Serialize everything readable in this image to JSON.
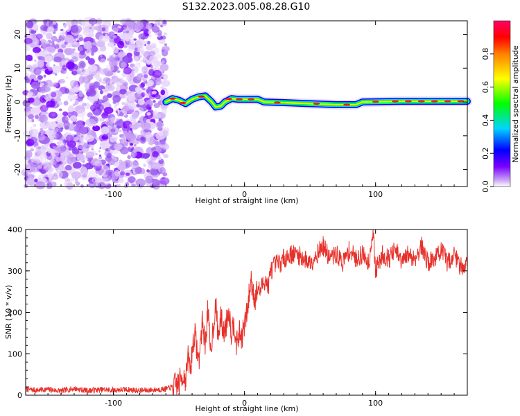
{
  "title": "S132.2023.005.08.28.G10",
  "colors": {
    "snr_line": "#e8302a",
    "spectrogram_background": "#ffffff",
    "colormap": [
      "#ffffff",
      "#c9a0f5",
      "#7a00ff",
      "#0000ff",
      "#00d4ff",
      "#00ff00",
      "#ffff00",
      "#ff8000",
      "#ff0000",
      "#ff0066"
    ]
  },
  "chart_data": [
    {
      "type": "heatmap",
      "xlabel": "Height of straight line (km)",
      "ylabel": "Frequency (Hz)",
      "xlim": [
        -167,
        170
      ],
      "ylim": [
        -25,
        24
      ],
      "xticks": [
        "-100",
        "0",
        "100"
      ],
      "xtick_values": [
        -100,
        0,
        100
      ],
      "yticks": [
        "-20",
        "-10",
        "0",
        "10",
        "20"
      ],
      "ytick_values": [
        -20,
        -10,
        0,
        10,
        20
      ],
      "noise_region_x": [
        -167,
        -60
      ],
      "ridge": [
        {
          "x": -60,
          "f": 0.0
        },
        {
          "x": -55,
          "f": 1.0
        },
        {
          "x": -50,
          "f": 0.5
        },
        {
          "x": -45,
          "f": -0.5
        },
        {
          "x": -40,
          "f": 0.8
        },
        {
          "x": -35,
          "f": 1.5
        },
        {
          "x": -30,
          "f": 1.8
        },
        {
          "x": -25,
          "f": 0.0
        },
        {
          "x": -22,
          "f": -1.5
        },
        {
          "x": -18,
          "f": -1.2
        },
        {
          "x": -15,
          "f": 0.0
        },
        {
          "x": -10,
          "f": 1.0
        },
        {
          "x": -5,
          "f": 0.8
        },
        {
          "x": 0,
          "f": 0.8
        },
        {
          "x": 10,
          "f": 0.8
        },
        {
          "x": 15,
          "f": 0.0
        },
        {
          "x": 30,
          "f": -0.2
        },
        {
          "x": 50,
          "f": -0.5
        },
        {
          "x": 70,
          "f": -0.8
        },
        {
          "x": 85,
          "f": -0.8
        },
        {
          "x": 90,
          "f": 0.0
        },
        {
          "x": 120,
          "f": 0.2
        },
        {
          "x": 150,
          "f": 0.2
        },
        {
          "x": 170,
          "f": 0.2
        }
      ]
    },
    {
      "type": "colorbar",
      "label": "Normalized spectral amplitude",
      "ylim": [
        0,
        1
      ],
      "ticks": [
        "0.0",
        "0.2",
        "0.4",
        "0.6",
        "0.8"
      ],
      "tick_values": [
        0.0,
        0.2,
        0.4,
        0.6,
        0.8
      ]
    },
    {
      "type": "line",
      "xlabel": "Height of straight line (km)",
      "ylabel": "SNR (10 * v/v)",
      "xlim": [
        -167,
        170
      ],
      "ylim": [
        0,
        400
      ],
      "xticks": [
        "-100",
        "0",
        "100"
      ],
      "xtick_values": [
        -100,
        0,
        100
      ],
      "yticks": [
        "0",
        "100",
        "200",
        "300",
        "400"
      ],
      "ytick_values": [
        0,
        100,
        200,
        300,
        400
      ],
      "series": [
        {
          "x": [
            -167,
            -160,
            -150,
            -140,
            -130,
            -120,
            -110,
            -100,
            -90,
            -80,
            -70,
            -60,
            -55,
            -50,
            -47,
            -45,
            -43,
            -41,
            -40,
            -38,
            -35,
            -32,
            -30,
            -28,
            -26,
            -24,
            -22,
            -20,
            -18,
            -16,
            -14,
            -12,
            -10,
            -8,
            -6,
            -4,
            -2,
            0,
            2,
            5,
            8,
            10,
            12,
            14,
            16,
            18,
            20,
            22,
            25,
            28,
            30,
            35,
            40,
            45,
            50,
            55,
            60,
            65,
            70,
            75,
            80,
            85,
            90,
            95,
            98,
            100,
            105,
            110,
            115,
            120,
            125,
            130,
            135,
            140,
            145,
            150,
            155,
            160,
            165,
            170
          ],
          "y": [
            15,
            12,
            14,
            10,
            16,
            11,
            13,
            12,
            14,
            11,
            13,
            15,
            20,
            30,
            50,
            40,
            90,
            60,
            110,
            150,
            80,
            180,
            120,
            210,
            100,
            160,
            220,
            140,
            190,
            150,
            170,
            210,
            150,
            180,
            120,
            150,
            140,
            170,
            200,
            280,
            230,
            260,
            250,
            270,
            280,
            260,
            300,
            310,
            320,
            320,
            330,
            340,
            340,
            330,
            320,
            340,
            360,
            330,
            340,
            320,
            350,
            330,
            340,
            320,
            400,
            300,
            340,
            330,
            350,
            320,
            340,
            330,
            360,
            320,
            330,
            350,
            320,
            340,
            310,
            320
          ]
        }
      ]
    }
  ]
}
